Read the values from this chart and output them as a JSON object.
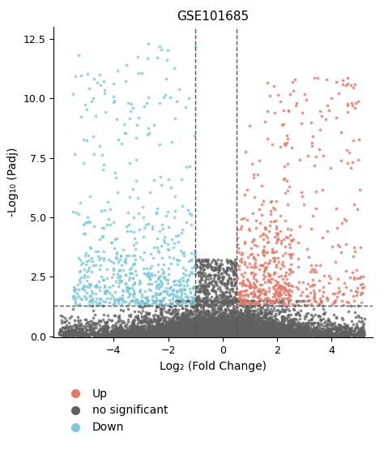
{
  "title": "GSE101685",
  "xlabel": "Log₂ (Fold Change)",
  "ylabel": "-Log₁₀ (Padj)",
  "xlim": [
    -6.2,
    5.5
  ],
  "ylim": [
    -0.05,
    13
  ],
  "vline1": -1.0,
  "vline2": 0.5,
  "hline": 1.301,
  "color_up": "#E07B6A",
  "color_down": "#7DC8D8",
  "color_ns": "#606060",
  "seed": 42,
  "dot_size": 7,
  "alpha": 0.75,
  "title_fontsize": 11,
  "label_fontsize": 10,
  "tick_fontsize": 9,
  "xticks": [
    -4,
    -2,
    0,
    2,
    4
  ],
  "yticks": [
    0.0,
    2.5,
    5.0,
    7.5,
    10.0,
    12.5
  ],
  "legend_labels": [
    "Up",
    "no significant",
    "Down"
  ]
}
